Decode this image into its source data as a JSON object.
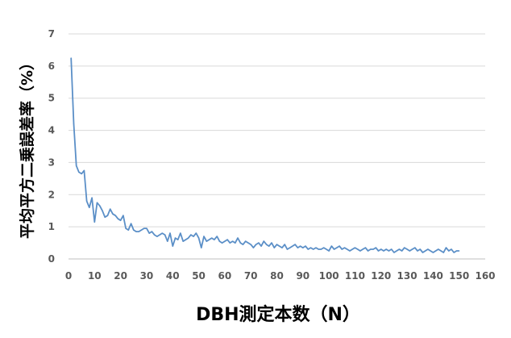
{
  "chart_data": {
    "type": "line",
    "title": "",
    "xlabel": "DBH測定本数（N）",
    "ylabel": "平均平方二乗誤差率（%）",
    "xlim": [
      0,
      160
    ],
    "ylim": [
      0,
      7
    ],
    "xticks": [
      "0",
      "10",
      "20",
      "30",
      "40",
      "50",
      "60",
      "70",
      "80",
      "90",
      "100",
      "110",
      "120",
      "130",
      "140",
      "150",
      "160"
    ],
    "yticks": [
      "0",
      "1",
      "2",
      "3",
      "4",
      "5",
      "6",
      "7"
    ],
    "grid": "horizontal",
    "legend": "none",
    "line_color": "#5b8fc7",
    "series": [
      {
        "x": [
          1,
          2,
          3,
          4,
          5,
          6,
          7,
          8,
          9,
          10,
          11,
          12,
          13,
          14,
          15,
          16,
          17,
          18,
          19,
          20,
          21,
          22,
          23,
          24,
          25,
          26,
          27,
          28,
          29,
          30,
          31,
          32,
          33,
          34,
          35,
          36,
          37,
          38,
          39,
          40,
          41,
          42,
          43,
          44,
          45,
          46,
          47,
          48,
          49,
          50,
          51,
          52,
          53,
          54,
          55,
          56,
          57,
          58,
          59,
          60,
          61,
          62,
          63,
          64,
          65,
          66,
          67,
          68,
          69,
          70,
          71,
          72,
          73,
          74,
          75,
          76,
          77,
          78,
          79,
          80,
          81,
          82,
          83,
          84,
          85,
          86,
          87,
          88,
          89,
          90,
          91,
          92,
          93,
          94,
          95,
          96,
          97,
          98,
          99,
          100,
          101,
          102,
          103,
          104,
          105,
          106,
          107,
          108,
          109,
          110,
          111,
          112,
          113,
          114,
          115,
          116,
          117,
          118,
          119,
          120,
          121,
          122,
          123,
          124,
          125,
          126,
          127,
          128,
          129,
          130,
          131,
          132,
          133,
          134,
          135,
          136,
          137,
          138,
          139,
          140,
          141,
          142,
          143,
          144,
          145,
          146,
          147,
          148,
          149,
          150
        ],
        "y": [
          6.25,
          4.2,
          2.9,
          2.7,
          2.65,
          2.75,
          1.8,
          1.6,
          1.9,
          1.15,
          1.75,
          1.65,
          1.5,
          1.3,
          1.35,
          1.55,
          1.4,
          1.35,
          1.25,
          1.2,
          1.35,
          0.95,
          0.9,
          1.1,
          0.9,
          0.85,
          0.85,
          0.9,
          0.95,
          0.95,
          0.8,
          0.85,
          0.75,
          0.7,
          0.75,
          0.8,
          0.75,
          0.55,
          0.8,
          0.4,
          0.65,
          0.6,
          0.8,
          0.55,
          0.6,
          0.65,
          0.75,
          0.7,
          0.8,
          0.65,
          0.35,
          0.7,
          0.55,
          0.6,
          0.65,
          0.6,
          0.7,
          0.55,
          0.5,
          0.55,
          0.6,
          0.5,
          0.55,
          0.5,
          0.65,
          0.5,
          0.45,
          0.55,
          0.5,
          0.45,
          0.35,
          0.45,
          0.5,
          0.4,
          0.55,
          0.45,
          0.4,
          0.5,
          0.35,
          0.45,
          0.4,
          0.35,
          0.45,
          0.3,
          0.35,
          0.4,
          0.45,
          0.35,
          0.4,
          0.35,
          0.4,
          0.3,
          0.35,
          0.3,
          0.35,
          0.3,
          0.3,
          0.35,
          0.3,
          0.25,
          0.4,
          0.3,
          0.35,
          0.4,
          0.3,
          0.35,
          0.3,
          0.25,
          0.3,
          0.35,
          0.3,
          0.25,
          0.3,
          0.35,
          0.25,
          0.3,
          0.3,
          0.35,
          0.25,
          0.3,
          0.25,
          0.3,
          0.25,
          0.3,
          0.2,
          0.25,
          0.3,
          0.25,
          0.35,
          0.3,
          0.25,
          0.3,
          0.35,
          0.25,
          0.3,
          0.2,
          0.25,
          0.3,
          0.25,
          0.2,
          0.25,
          0.3,
          0.25,
          0.2,
          0.35,
          0.25,
          0.3,
          0.2,
          0.25,
          0.25
        ]
      }
    ]
  }
}
